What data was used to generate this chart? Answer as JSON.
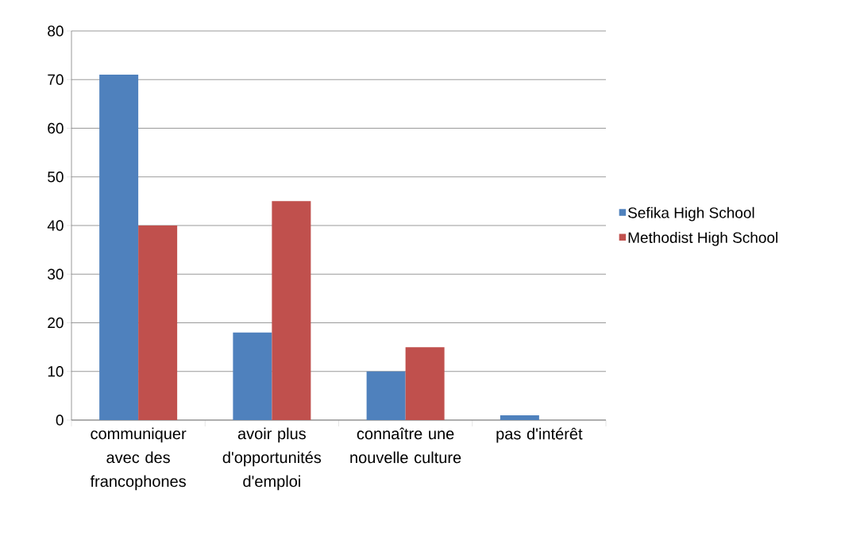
{
  "chart_data": {
    "type": "bar",
    "categories": [
      "communiquer avec des francophones",
      "avoir plus d'opportunités d'emploi",
      "connaître une nouvelle culture",
      "pas d'intérêt"
    ],
    "series": [
      {
        "name": "Sefika High School",
        "color": "#4f81bd",
        "values": [
          71,
          18,
          10,
          1
        ]
      },
      {
        "name": "Methodist High School",
        "color": "#c0504d",
        "values": [
          40,
          45,
          15,
          0
        ]
      }
    ],
    "ylim": [
      0,
      80
    ],
    "yticks": [
      0,
      10,
      20,
      30,
      40,
      50,
      60,
      70,
      80
    ],
    "grid": "y",
    "legend": "right"
  }
}
